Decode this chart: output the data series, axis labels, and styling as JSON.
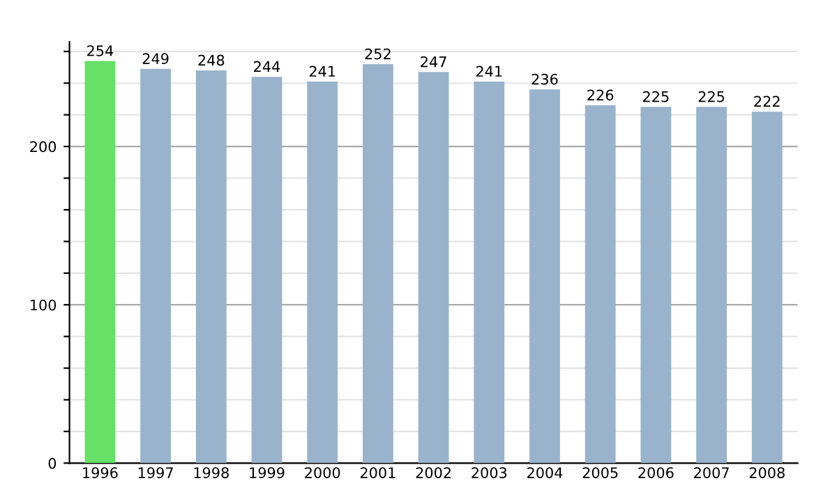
{
  "chart_data": {
    "type": "bar",
    "categories": [
      "1996",
      "1997",
      "1998",
      "1999",
      "2000",
      "2001",
      "2002",
      "2003",
      "2004",
      "2005",
      "2006",
      "2007",
      "2008"
    ],
    "values": [
      254,
      249,
      248,
      244,
      241,
      252,
      247,
      241,
      236,
      226,
      225,
      225,
      222
    ],
    "colors": [
      "#66e066",
      "#9ab3cc",
      "#9ab3cc",
      "#9ab3cc",
      "#9ab3cc",
      "#9ab3cc",
      "#9ab3cc",
      "#9ab3cc",
      "#9ab3cc",
      "#9ab3cc",
      "#9ab3cc",
      "#9ab3cc",
      "#9ab3cc"
    ],
    "ylim": [
      0,
      266
    ],
    "yticks": [
      0,
      {
        "value": 20,
        "label": null
      },
      {
        "value": 40,
        "label": null
      },
      {
        "value": 60,
        "label": null
      },
      {
        "value": 80,
        "label": null
      },
      100,
      {
        "value": 120,
        "label": null
      },
      {
        "value": 140,
        "label": null
      },
      {
        "value": 160,
        "label": null
      },
      {
        "value": 180,
        "label": null
      },
      200,
      {
        "value": 220,
        "label": null
      },
      {
        "value": 240,
        "label": null
      },
      {
        "value": 260,
        "label": null
      }
    ],
    "grid": "y",
    "data_labels": true
  }
}
